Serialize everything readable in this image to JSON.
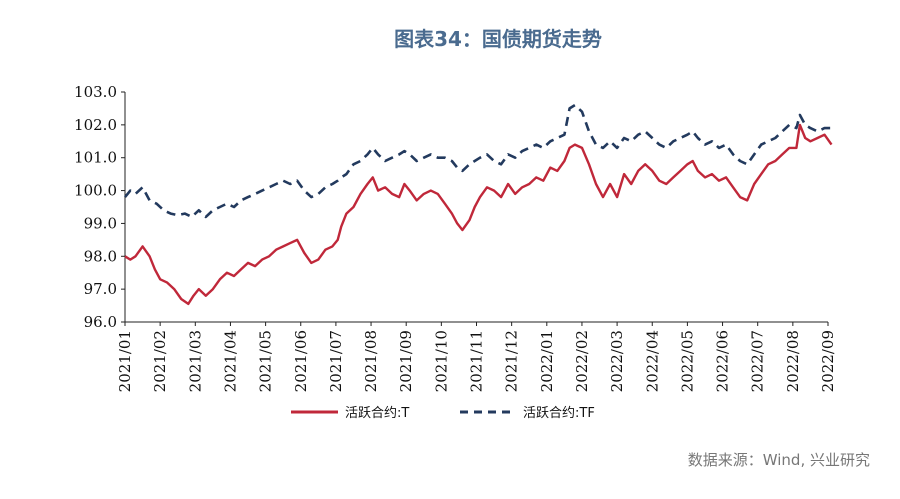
{
  "chart_data": {
    "type": "line",
    "title": "图表34：国债期货走势",
    "xlabel": "",
    "ylabel": "",
    "ylim": [
      96.0,
      103.0
    ],
    "yticks": [
      "96.0",
      "97.0",
      "98.0",
      "99.0",
      "100.0",
      "101.0",
      "102.0",
      "103.0"
    ],
    "categories": [
      "2021/01",
      "2021/02",
      "2021/03",
      "2021/04",
      "2021/05",
      "2021/06",
      "2021/07",
      "2021/08",
      "2021/09",
      "2021/10",
      "2021/11",
      "2021/12",
      "2022/01",
      "2022/02",
      "2022/03",
      "2022/04",
      "2022/05",
      "2022/06",
      "2022/07",
      "2022/08",
      "2022/09"
    ],
    "series": [
      {
        "name": "活跃合约:T",
        "color": "#c0283a",
        "style": "solid",
        "values": [
          [
            0.0,
            98.0
          ],
          [
            0.15,
            97.9
          ],
          [
            0.3,
            98.0
          ],
          [
            0.5,
            98.3
          ],
          [
            0.7,
            98.0
          ],
          [
            0.85,
            97.6
          ],
          [
            1.0,
            97.3
          ],
          [
            1.2,
            97.2
          ],
          [
            1.4,
            97.0
          ],
          [
            1.6,
            96.7
          ],
          [
            1.8,
            96.55
          ],
          [
            1.95,
            96.8
          ],
          [
            2.1,
            97.0
          ],
          [
            2.3,
            96.8
          ],
          [
            2.5,
            97.0
          ],
          [
            2.7,
            97.3
          ],
          [
            2.9,
            97.5
          ],
          [
            3.1,
            97.4
          ],
          [
            3.3,
            97.6
          ],
          [
            3.5,
            97.8
          ],
          [
            3.7,
            97.7
          ],
          [
            3.9,
            97.9
          ],
          [
            4.1,
            98.0
          ],
          [
            4.3,
            98.2
          ],
          [
            4.5,
            98.3
          ],
          [
            4.7,
            98.4
          ],
          [
            4.9,
            98.5
          ],
          [
            5.1,
            98.1
          ],
          [
            5.3,
            97.8
          ],
          [
            5.5,
            97.9
          ],
          [
            5.7,
            98.2
          ],
          [
            5.9,
            98.3
          ],
          [
            6.05,
            98.5
          ],
          [
            6.15,
            98.9
          ],
          [
            6.3,
            99.3
          ],
          [
            6.5,
            99.5
          ],
          [
            6.7,
            99.9
          ],
          [
            6.9,
            100.2
          ],
          [
            7.05,
            100.4
          ],
          [
            7.2,
            100.0
          ],
          [
            7.4,
            100.1
          ],
          [
            7.6,
            99.9
          ],
          [
            7.8,
            99.8
          ],
          [
            7.95,
            100.2
          ],
          [
            8.1,
            100.0
          ],
          [
            8.3,
            99.7
          ],
          [
            8.5,
            99.9
          ],
          [
            8.7,
            100.0
          ],
          [
            8.9,
            99.9
          ],
          [
            9.1,
            99.6
          ],
          [
            9.3,
            99.3
          ],
          [
            9.45,
            99.0
          ],
          [
            9.6,
            98.8
          ],
          [
            9.8,
            99.1
          ],
          [
            9.95,
            99.5
          ],
          [
            10.1,
            99.8
          ],
          [
            10.3,
            100.1
          ],
          [
            10.5,
            100.0
          ],
          [
            10.7,
            99.8
          ],
          [
            10.9,
            100.2
          ],
          [
            11.1,
            99.9
          ],
          [
            11.3,
            100.1
          ],
          [
            11.5,
            100.2
          ],
          [
            11.7,
            100.4
          ],
          [
            11.9,
            100.3
          ],
          [
            12.1,
            100.7
          ],
          [
            12.3,
            100.6
          ],
          [
            12.5,
            100.9
          ],
          [
            12.65,
            101.3
          ],
          [
            12.8,
            101.4
          ],
          [
            13.0,
            101.3
          ],
          [
            13.2,
            100.8
          ],
          [
            13.4,
            100.2
          ],
          [
            13.6,
            99.8
          ],
          [
            13.8,
            100.2
          ],
          [
            14.0,
            99.8
          ],
          [
            14.2,
            100.5
          ],
          [
            14.4,
            100.2
          ],
          [
            14.6,
            100.6
          ],
          [
            14.8,
            100.8
          ],
          [
            15.0,
            100.6
          ],
          [
            15.2,
            100.3
          ],
          [
            15.4,
            100.2
          ],
          [
            15.6,
            100.4
          ],
          [
            15.8,
            100.6
          ],
          [
            16.0,
            100.8
          ],
          [
            16.15,
            100.9
          ],
          [
            16.3,
            100.6
          ],
          [
            16.5,
            100.4
          ],
          [
            16.7,
            100.5
          ],
          [
            16.9,
            100.3
          ],
          [
            17.1,
            100.4
          ],
          [
            17.3,
            100.1
          ],
          [
            17.5,
            99.8
          ],
          [
            17.7,
            99.7
          ],
          [
            17.9,
            100.2
          ],
          [
            18.1,
            100.5
          ],
          [
            18.3,
            100.8
          ],
          [
            18.5,
            100.9
          ],
          [
            18.7,
            101.1
          ],
          [
            18.9,
            101.3
          ],
          [
            19.1,
            101.3
          ],
          [
            19.2,
            102.0
          ],
          [
            19.35,
            101.6
          ],
          [
            19.5,
            101.5
          ],
          [
            19.7,
            101.6
          ],
          [
            19.9,
            101.7
          ],
          [
            20.1,
            101.4
          ]
        ]
      },
      {
        "name": "活跃合约:TF",
        "color": "#233a5e",
        "style": "dashed",
        "values": [
          [
            0.0,
            99.8
          ],
          [
            0.15,
            100.0
          ],
          [
            0.3,
            99.9
          ],
          [
            0.5,
            100.1
          ],
          [
            0.7,
            99.7
          ],
          [
            0.9,
            99.6
          ],
          [
            1.1,
            99.4
          ],
          [
            1.3,
            99.3
          ],
          [
            1.5,
            99.25
          ],
          [
            1.7,
            99.3
          ],
          [
            1.9,
            99.2
          ],
          [
            2.1,
            99.4
          ],
          [
            2.3,
            99.2
          ],
          [
            2.5,
            99.4
          ],
          [
            2.7,
            99.5
          ],
          [
            2.9,
            99.6
          ],
          [
            3.1,
            99.5
          ],
          [
            3.3,
            99.7
          ],
          [
            3.5,
            99.8
          ],
          [
            3.7,
            99.9
          ],
          [
            3.9,
            100.0
          ],
          [
            4.1,
            100.1
          ],
          [
            4.3,
            100.2
          ],
          [
            4.5,
            100.3
          ],
          [
            4.7,
            100.2
          ],
          [
            4.9,
            100.3
          ],
          [
            5.1,
            100.0
          ],
          [
            5.3,
            99.8
          ],
          [
            5.5,
            99.9
          ],
          [
            5.7,
            100.1
          ],
          [
            5.9,
            100.2
          ],
          [
            6.05,
            100.3
          ],
          [
            6.15,
            100.4
          ],
          [
            6.3,
            100.5
          ],
          [
            6.5,
            100.8
          ],
          [
            6.7,
            100.9
          ],
          [
            6.9,
            101.1
          ],
          [
            7.05,
            101.3
          ],
          [
            7.2,
            101.1
          ],
          [
            7.4,
            100.9
          ],
          [
            7.6,
            101.0
          ],
          [
            7.8,
            101.1
          ],
          [
            7.95,
            101.2
          ],
          [
            8.1,
            101.1
          ],
          [
            8.3,
            100.9
          ],
          [
            8.5,
            101.0
          ],
          [
            8.7,
            101.1
          ],
          [
            8.9,
            101.0
          ],
          [
            9.1,
            101.0
          ],
          [
            9.3,
            100.9
          ],
          [
            9.45,
            100.7
          ],
          [
            9.6,
            100.6
          ],
          [
            9.8,
            100.8
          ],
          [
            9.95,
            100.9
          ],
          [
            10.1,
            101.0
          ],
          [
            10.3,
            101.1
          ],
          [
            10.5,
            100.9
          ],
          [
            10.7,
            100.8
          ],
          [
            10.9,
            101.1
          ],
          [
            11.1,
            101.0
          ],
          [
            11.3,
            101.2
          ],
          [
            11.5,
            101.3
          ],
          [
            11.7,
            101.4
          ],
          [
            11.9,
            101.3
          ],
          [
            12.1,
            101.5
          ],
          [
            12.3,
            101.6
          ],
          [
            12.5,
            101.7
          ],
          [
            12.65,
            102.5
          ],
          [
            12.8,
            102.6
          ],
          [
            13.0,
            102.4
          ],
          [
            13.2,
            101.8
          ],
          [
            13.4,
            101.4
          ],
          [
            13.6,
            101.3
          ],
          [
            13.8,
            101.5
          ],
          [
            14.0,
            101.3
          ],
          [
            14.2,
            101.6
          ],
          [
            14.4,
            101.5
          ],
          [
            14.6,
            101.7
          ],
          [
            14.8,
            101.8
          ],
          [
            15.0,
            101.6
          ],
          [
            15.2,
            101.4
          ],
          [
            15.4,
            101.3
          ],
          [
            15.6,
            101.5
          ],
          [
            15.8,
            101.6
          ],
          [
            16.0,
            101.7
          ],
          [
            16.15,
            101.8
          ],
          [
            16.3,
            101.6
          ],
          [
            16.5,
            101.4
          ],
          [
            16.7,
            101.5
          ],
          [
            16.9,
            101.3
          ],
          [
            17.1,
            101.4
          ],
          [
            17.3,
            101.1
          ],
          [
            17.5,
            100.9
          ],
          [
            17.7,
            100.8
          ],
          [
            17.9,
            101.1
          ],
          [
            18.1,
            101.4
          ],
          [
            18.3,
            101.5
          ],
          [
            18.5,
            101.6
          ],
          [
            18.7,
            101.8
          ],
          [
            18.9,
            102.0
          ],
          [
            19.1,
            101.9
          ],
          [
            19.2,
            102.3
          ],
          [
            19.35,
            102.0
          ],
          [
            19.5,
            101.9
          ],
          [
            19.7,
            101.8
          ],
          [
            19.9,
            101.9
          ],
          [
            20.1,
            101.9
          ]
        ]
      }
    ],
    "legend_position": "bottom-center",
    "grid": false
  },
  "footer": {
    "source": "数据来源：Wind, 兴业研究"
  }
}
